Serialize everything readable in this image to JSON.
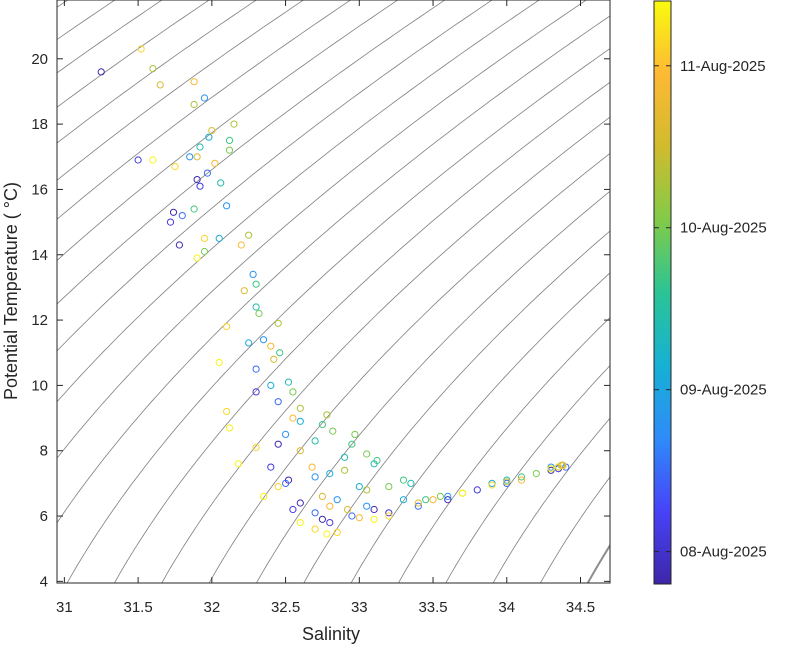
{
  "chart_data": {
    "type": "scatter",
    "title": "",
    "xlabel": "Salinity",
    "ylabel": "Potential Temperature ( °C)",
    "xlim": [
      30.95,
      34.7
    ],
    "ylim": [
      3.95,
      21.8
    ],
    "grid": false,
    "x_ticks": [
      31,
      31.5,
      32,
      32.5,
      33,
      33.5,
      34,
      34.5
    ],
    "x_tick_labels": [
      "31",
      "31.5",
      "32",
      "32.5",
      "33",
      "33.5",
      "34",
      "34.5"
    ],
    "y_ticks": [
      4,
      6,
      8,
      10,
      12,
      14,
      16,
      18,
      20
    ],
    "y_tick_labels": [
      "4",
      "6",
      "8",
      "10",
      "12",
      "14",
      "16",
      "18",
      "20"
    ],
    "marker": "open-circle",
    "colormap": "parula",
    "colormap_stops": [
      "#3e26a8",
      "#4743f8",
      "#2f8bf9",
      "#16b1d4",
      "#2bc495",
      "#82cb48",
      "#d1bb2d",
      "#fdb934",
      "#f9fb0e"
    ],
    "isopycnal_color": "#7f7f7f",
    "highlight_isopycnal_color": "#8c8c8c",
    "colorbar": {
      "range_days": [
        0,
        3.6
      ],
      "ticks": [
        {
          "value": 0.2,
          "label": "08-Aug-2025"
        },
        {
          "value": 1.2,
          "label": "09-Aug-2025"
        },
        {
          "value": 2.2,
          "label": "10-Aug-2025"
        },
        {
          "value": 3.2,
          "label": "11-Aug-2025"
        }
      ]
    },
    "profiles": [
      {
        "day": 0.05,
        "points": [
          [
            31.25,
            19.6
          ],
          [
            31.74,
            15.3
          ],
          [
            31.78,
            14.3
          ],
          [
            31.9,
            16.3
          ],
          [
            32.45,
            8.2
          ],
          [
            32.52,
            7.1
          ],
          [
            32.6,
            6.4
          ],
          [
            32.75,
            5.9
          ],
          [
            33.1,
            6.2
          ],
          [
            33.6,
            6.5
          ],
          [
            34.3,
            7.4
          ]
        ]
      },
      {
        "day": 0.3,
        "points": [
          [
            31.5,
            16.9
          ],
          [
            31.72,
            15.0
          ],
          [
            31.92,
            16.1
          ],
          [
            32.3,
            9.8
          ],
          [
            32.4,
            7.5
          ],
          [
            32.55,
            6.2
          ],
          [
            32.8,
            5.8
          ],
          [
            33.2,
            6.1
          ],
          [
            33.8,
            6.8
          ],
          [
            34.35,
            7.45
          ]
        ]
      },
      {
        "day": 0.7,
        "points": [
          [
            31.8,
            15.2
          ],
          [
            31.97,
            16.5
          ],
          [
            32.3,
            10.5
          ],
          [
            32.45,
            9.5
          ],
          [
            32.5,
            7.0
          ],
          [
            32.7,
            6.1
          ],
          [
            32.95,
            6.0
          ],
          [
            33.4,
            6.3
          ],
          [
            34.0,
            7.0
          ],
          [
            34.4,
            7.5
          ]
        ]
      },
      {
        "day": 1.0,
        "points": [
          [
            31.85,
            17.0
          ],
          [
            31.95,
            18.8
          ],
          [
            32.1,
            15.5
          ],
          [
            32.28,
            13.4
          ],
          [
            32.35,
            11.4
          ],
          [
            32.5,
            8.5
          ],
          [
            32.7,
            7.2
          ],
          [
            32.85,
            6.5
          ],
          [
            33.05,
            6.3
          ],
          [
            33.6,
            6.6
          ],
          [
            34.3,
            7.5
          ]
        ]
      },
      {
        "day": 1.3,
        "points": [
          [
            31.98,
            17.6
          ],
          [
            32.05,
            14.5
          ],
          [
            32.25,
            11.3
          ],
          [
            32.4,
            10.0
          ],
          [
            32.6,
            8.9
          ],
          [
            32.8,
            7.3
          ],
          [
            33.0,
            6.9
          ],
          [
            33.3,
            6.5
          ],
          [
            33.9,
            7.0
          ],
          [
            34.35,
            7.5
          ]
        ]
      },
      {
        "day": 1.6,
        "points": [
          [
            31.92,
            17.3
          ],
          [
            32.06,
            16.2
          ],
          [
            32.3,
            12.4
          ],
          [
            32.52,
            10.1
          ],
          [
            32.7,
            8.3
          ],
          [
            32.9,
            7.8
          ],
          [
            33.1,
            7.6
          ],
          [
            33.35,
            7.0
          ],
          [
            34.0,
            7.1
          ],
          [
            34.38,
            7.55
          ]
        ]
      },
      {
        "day": 1.9,
        "points": [
          [
            31.88,
            15.4
          ],
          [
            32.12,
            17.5
          ],
          [
            32.3,
            13.1
          ],
          [
            32.46,
            11.0
          ],
          [
            32.75,
            8.8
          ],
          [
            32.95,
            8.2
          ],
          [
            33.12,
            7.7
          ],
          [
            33.3,
            7.1
          ],
          [
            33.45,
            6.5
          ],
          [
            34.1,
            7.2
          ],
          [
            34.38,
            7.55
          ]
        ]
      },
      {
        "day": 2.2,
        "points": [
          [
            31.95,
            14.1
          ],
          [
            32.12,
            17.2
          ],
          [
            32.32,
            12.2
          ],
          [
            32.55,
            9.8
          ],
          [
            32.82,
            8.6
          ],
          [
            32.97,
            8.5
          ],
          [
            33.05,
            7.9
          ],
          [
            33.2,
            6.9
          ],
          [
            33.55,
            6.6
          ],
          [
            34.2,
            7.3
          ],
          [
            34.38,
            7.55
          ]
        ]
      },
      {
        "day": 2.5,
        "points": [
          [
            31.6,
            19.7
          ],
          [
            31.88,
            18.6
          ],
          [
            32.15,
            18.0
          ],
          [
            32.25,
            14.6
          ],
          [
            32.45,
            11.9
          ],
          [
            32.6,
            9.3
          ],
          [
            32.78,
            9.1
          ],
          [
            32.9,
            7.4
          ],
          [
            33.05,
            6.8
          ],
          [
            33.7,
            6.7
          ],
          [
            34.37,
            7.55
          ]
        ]
      },
      {
        "day": 2.8,
        "points": [
          [
            31.65,
            19.2
          ],
          [
            31.9,
            17.0
          ],
          [
            32.0,
            17.8
          ],
          [
            32.22,
            12.9
          ],
          [
            32.42,
            10.8
          ],
          [
            32.6,
            8.0
          ],
          [
            32.75,
            6.6
          ],
          [
            32.92,
            6.2
          ],
          [
            33.4,
            6.4
          ],
          [
            34.0,
            7.05
          ],
          [
            34.38,
            7.55
          ]
        ]
      },
      {
        "day": 3.1,
        "points": [
          [
            31.88,
            19.3
          ],
          [
            32.02,
            16.8
          ],
          [
            32.2,
            14.3
          ],
          [
            32.4,
            11.2
          ],
          [
            32.55,
            9.0
          ],
          [
            32.68,
            7.5
          ],
          [
            32.8,
            6.3
          ],
          [
            33.0,
            5.95
          ],
          [
            33.5,
            6.5
          ],
          [
            34.1,
            7.1
          ],
          [
            34.38,
            7.55
          ]
        ]
      },
      {
        "day": 3.35,
        "points": [
          [
            31.52,
            20.3
          ],
          [
            31.75,
            16.7
          ],
          [
            31.95,
            14.5
          ],
          [
            32.1,
            11.8
          ],
          [
            32.1,
            9.2
          ],
          [
            32.3,
            8.1
          ],
          [
            32.45,
            6.9
          ],
          [
            32.7,
            5.6
          ],
          [
            32.85,
            5.5
          ],
          [
            33.2,
            6.0
          ],
          [
            33.9,
            6.95
          ],
          [
            34.35,
            7.5
          ]
        ]
      },
      {
        "day": 3.55,
        "points": [
          [
            31.6,
            16.9
          ],
          [
            31.9,
            13.9
          ],
          [
            32.05,
            10.7
          ],
          [
            32.12,
            8.7
          ],
          [
            32.18,
            7.6
          ],
          [
            32.35,
            6.6
          ],
          [
            32.6,
            5.8
          ],
          [
            32.78,
            5.45
          ],
          [
            33.1,
            5.9
          ],
          [
            33.7,
            6.7
          ],
          [
            34.3,
            7.45
          ]
        ]
      }
    ]
  }
}
